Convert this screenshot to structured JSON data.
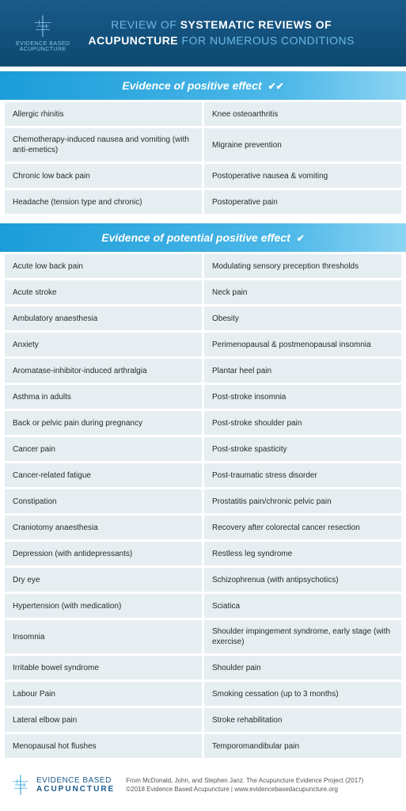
{
  "header": {
    "logo_line1": "EVIDENCE BASED",
    "logo_line2": "ACUPUNCTURE",
    "title_prefix": "REVIEW OF ",
    "title_bold1": "SYSTEMATIC REVIEWS OF",
    "title_bold2": "ACUPUNCTURE",
    "title_suffix": " FOR NUMEROUS CONDITIONS"
  },
  "section1": {
    "title": "Evidence of positive effect",
    "checks": "✔✔",
    "items": [
      "Allergic rhinitis",
      "Knee osteoarthritis",
      "Chemotherapy-induced nausea and vomiting (with anti-emetics)",
      "Migraine prevention",
      "Chronic low back pain",
      "Postoperative nausea & vomiting",
      "Headache (tension type and chronic)",
      "Postoperative pain"
    ]
  },
  "section2": {
    "title": "Evidence of potential positive effect",
    "checks": "✔",
    "items": [
      "Acute low back pain",
      "Modulating sensory preception thresholds",
      "Acute stroke",
      "Neck pain",
      "Ambulatory anaesthesia",
      "Obesity",
      "Anxiety",
      "Perimenopausal & postmenopausal insomnia",
      "Aromatase-inhibitor-induced arthralgia",
      "Plantar heel pain",
      "Asthma in adults",
      "Post-stroke insomnia",
      "Back or pelvic pain during pregnancy",
      "Post-stroke shoulder pain",
      "Cancer pain",
      "Post-stroke spasticity",
      "Cancer-related fatigue",
      "Post-traumatic stress disorder",
      "Constipation",
      "Prostatitis pain/chronic pelvic pain",
      "Craniotomy anaesthesia",
      "Recovery after colorectal cancer resection",
      "Depression (with antidepressants)",
      "Restless leg syndrome",
      "Dry eye",
      "Schizophrenua (with antipsychotics)",
      "Hypertension (with medication)",
      "Sciatica",
      "Insomnia",
      "Shoulder impingement syndrome, early stage (with exercise)",
      "Irritable bowel syndrome",
      "Shoulder pain",
      "Labour Pain",
      "Smoking cessation (up to 3 months)",
      "Lateral elbow pain",
      "Stroke rehabilitation",
      "Menopausal hot flushes",
      "Temporomandibular pain"
    ]
  },
  "footer": {
    "logo_line1": "EVIDENCE BASED",
    "logo_line2": "ACUPUNCTURE",
    "citation": "From McDonald, John, and Stephen Janz. The Acupuncture Evidence Project (2017)",
    "copyright": "©2018 Evidence Based Acupuncture  |  www.evidencebasedacupuncture.org"
  },
  "colors": {
    "header_grad_top": "#1a5a8a",
    "header_grad_bottom": "#0d4970",
    "section_grad_left": "#1b9dd9",
    "section_grad_right": "#8dd4f2",
    "cell_bg": "#e6eef2",
    "text": "#2a2a2a",
    "logo_color": "#1a5a8a",
    "footer_text": "#555555"
  }
}
